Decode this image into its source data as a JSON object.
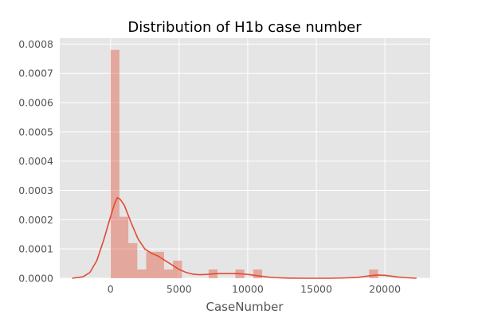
{
  "chart_data": {
    "type": "bar",
    "title": "Distribution of H1b case number",
    "xlabel": "CaseNumber",
    "ylabel": "",
    "xlim": [
      -3700,
      23300
    ],
    "ylim": [
      0,
      0.00082
    ],
    "x_ticks": [
      0,
      5000,
      10000,
      15000,
      20000
    ],
    "x_tick_labels": [
      "0",
      "5000",
      "10000",
      "15000",
      "20000"
    ],
    "y_ticks": [
      0,
      0.0001,
      0.0002,
      0.0003,
      0.0004,
      0.0005,
      0.0006,
      0.0007,
      0.0008
    ],
    "y_tick_labels": [
      "0.0000",
      "0.0001",
      "0.0002",
      "0.0003",
      "0.0004",
      "0.0005",
      "0.0006",
      "0.0007",
      "0.0008"
    ],
    "grid": true,
    "histogram": {
      "bin_start": 0,
      "bin_width": 650,
      "densities": [
        0.00078,
        0.00021,
        0.00012,
        3e-05,
        9e-05,
        9e-05,
        3e-05,
        6e-05,
        0,
        0,
        0,
        3e-05,
        0,
        0,
        3e-05,
        0,
        3e-05,
        0,
        0,
        0,
        0,
        0,
        0,
        0,
        0,
        0,
        0,
        0,
        0,
        3e-05
      ],
      "color": "#E24A33",
      "alpha": 0.4
    },
    "kde": {
      "color": "#E24A33",
      "x": [
        -2800,
        -2000,
        -1500,
        -1000,
        -500,
        0,
        300,
        500,
        700,
        1000,
        1500,
        2000,
        2500,
        3000,
        3500,
        4000,
        4500,
        5000,
        5500,
        6000,
        6500,
        7000,
        7500,
        8000,
        8500,
        9000,
        9500,
        10000,
        10500,
        11000,
        11500,
        12000,
        13000,
        14000,
        15000,
        16000,
        17000,
        18000,
        18500,
        19000,
        19500,
        20000,
        20500,
        21000,
        21500,
        22300
      ],
      "y": [
        0.0,
        5e-06,
        2e-05,
        6e-05,
        0.00013,
        0.00021,
        0.000255,
        0.000275,
        0.00027,
        0.00025,
        0.00019,
        0.000135,
        0.0001,
        8.5e-05,
        7.5e-05,
        6e-05,
        4.5e-05,
        3e-05,
        2e-05,
        1.4e-05,
        1.2e-05,
        1.3e-05,
        1.5e-05,
        1.6e-05,
        1.6e-05,
        1.6e-05,
        1.5e-05,
        1.3e-05,
        1e-05,
        7e-06,
        4e-06,
        2e-06,
        5e-07,
        0.0,
        0.0,
        0.0,
        1e-06,
        3e-06,
        6e-06,
        9e-06,
        1.1e-05,
        1e-05,
        7e-06,
        4e-06,
        2e-06,
        0.0
      ]
    }
  }
}
